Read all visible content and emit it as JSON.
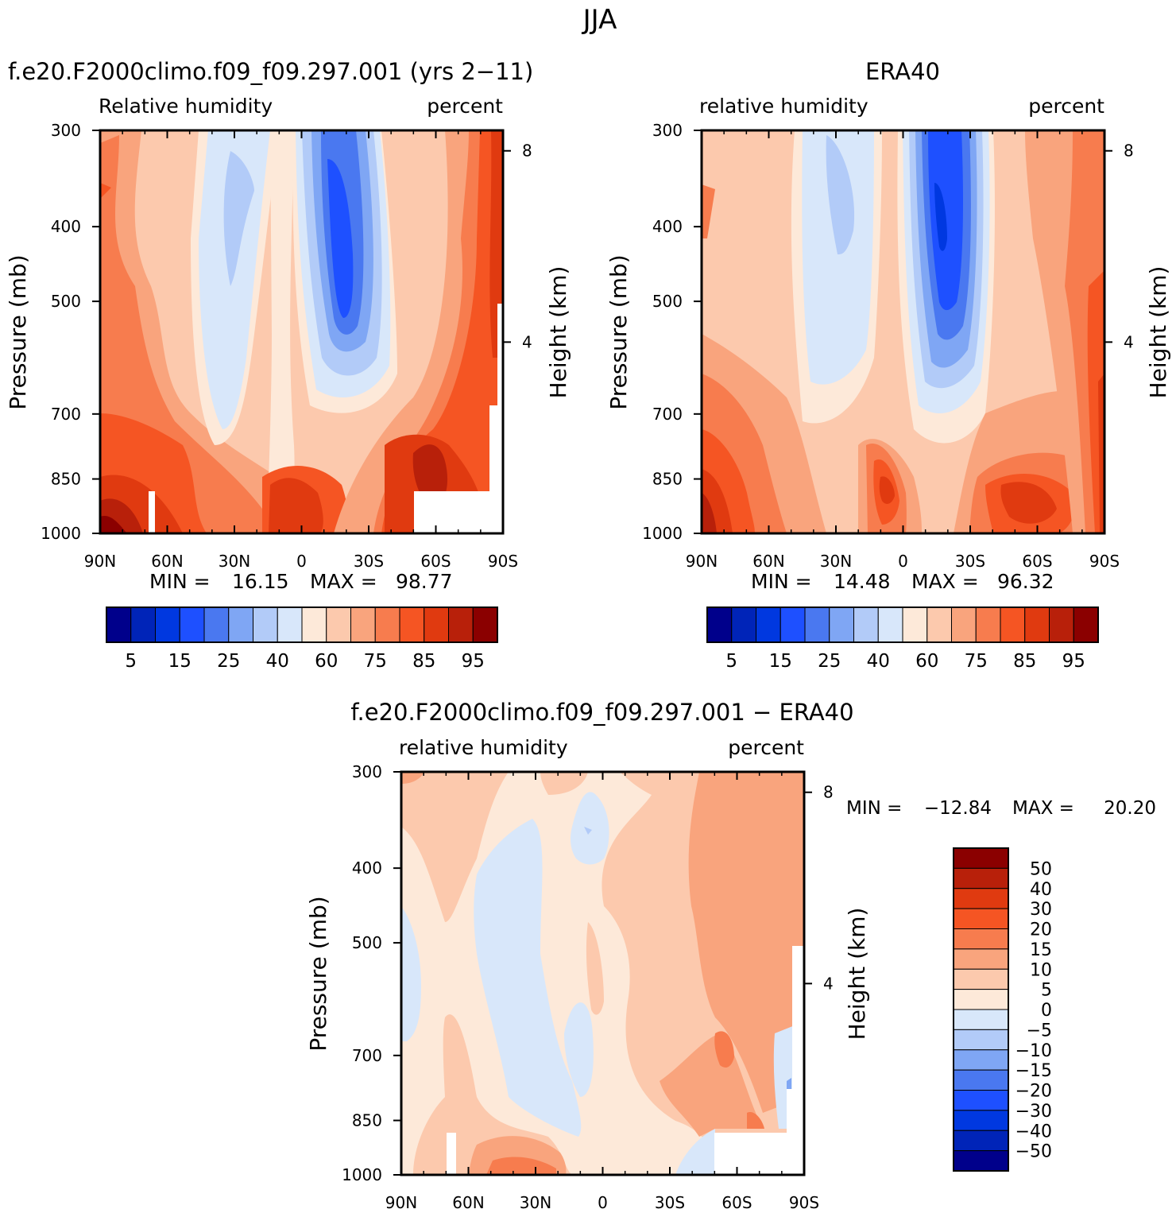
{
  "figure_title": "JJA",
  "chart_data": [
    {
      "type": "heatmap",
      "title": "f.e20.F2000climo.f09_f09.297.001 (yrs 2-11)",
      "left_label": "Relative humidity",
      "right_label": "percent",
      "xlabel": "",
      "ylabel": "Pressure (mb)",
      "y2label": "Height (km)",
      "x_ticks": [
        "90N",
        "60N",
        "30N",
        "0",
        "30S",
        "60S",
        "90S"
      ],
      "y_ticks": [
        "300",
        "400",
        "500",
        "700",
        "850",
        "1000"
      ],
      "y2_ticks": [
        "8",
        "4"
      ],
      "min_label": "MIN =",
      "min_value": "16.15",
      "max_label": "MAX =",
      "max_value": "98.77",
      "colorbar_labels": [
        "5",
        "15",
        "25",
        "40",
        "60",
        "75",
        "85",
        "95"
      ]
    },
    {
      "type": "heatmap",
      "title": "ERA40",
      "left_label": "relative humidity",
      "right_label": "percent",
      "xlabel": "",
      "ylabel": "Pressure (mb)",
      "y2label": "Height (km)",
      "x_ticks": [
        "90N",
        "60N",
        "30N",
        "0",
        "30S",
        "60S",
        "90S"
      ],
      "y_ticks": [
        "300",
        "400",
        "500",
        "700",
        "850",
        "1000"
      ],
      "y2_ticks": [
        "8",
        "4"
      ],
      "min_label": "MIN =",
      "min_value": "14.48",
      "max_label": "MAX =",
      "max_value": "96.32",
      "colorbar_labels": [
        "5",
        "15",
        "25",
        "40",
        "60",
        "75",
        "85",
        "95"
      ]
    },
    {
      "type": "heatmap",
      "title": "f.e20.F2000climo.f09_f09.297.001 - ERA40",
      "left_label": "relative humidity",
      "right_label": "percent",
      "xlabel": "",
      "ylabel": "Pressure (mb)",
      "y2label": "Height (km)",
      "x_ticks": [
        "90N",
        "60N",
        "30N",
        "0",
        "30S",
        "60S",
        "90S"
      ],
      "y_ticks": [
        "300",
        "400",
        "500",
        "700",
        "850",
        "1000"
      ],
      "y2_ticks": [
        "8",
        "4"
      ],
      "min_label": "MIN =",
      "min_value": "-12.84",
      "max_label": "MAX =",
      "max_value": "20.20",
      "colorbar_labels": [
        "50",
        "40",
        "30",
        "20",
        "15",
        "10",
        "5",
        "0",
        "-5",
        "-10",
        "-15",
        "-20",
        "-30",
        "-40",
        "-50"
      ]
    }
  ],
  "colors": {
    "abs_scale": [
      "#00008b",
      "#0024b8",
      "#0038e0",
      "#1e50ff",
      "#4a78f0",
      "#7fa6f4",
      "#b2cbf8",
      "#d8e7fa",
      "#fde9d9",
      "#fcc9ad",
      "#f9a47d",
      "#f77c4e",
      "#f55523",
      "#e03a10",
      "#b8200a",
      "#8b0000"
    ],
    "diff_scale": [
      "#8b0000",
      "#b8200a",
      "#e03a10",
      "#f55523",
      "#f77c4e",
      "#f9a47d",
      "#fcc9ad",
      "#fde9d9",
      "#d8e7fa",
      "#b2cbf8",
      "#7fa6f4",
      "#4a78f0",
      "#1e50ff",
      "#0038e0",
      "#0024b8",
      "#00008b"
    ]
  }
}
